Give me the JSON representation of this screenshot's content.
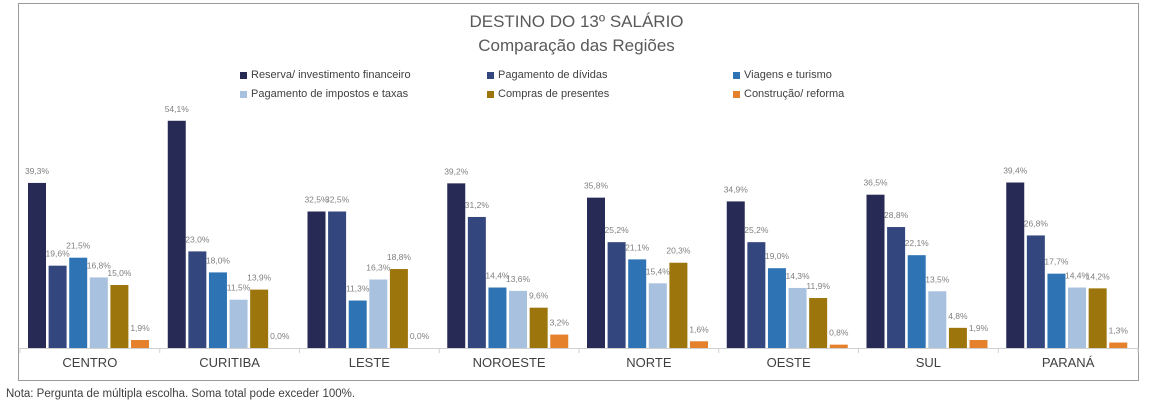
{
  "chart_data": {
    "type": "bar",
    "title": "DESTINO DO 13º SALÁRIO",
    "subtitle": "Comparação das Regiões",
    "categories": [
      "CENTRO",
      "CURITIBA",
      "LESTE",
      "NOROESTE",
      "NORTE",
      "OESTE",
      "SUL",
      "PARANÁ"
    ],
    "series": [
      {
        "name": "Reserva/ investimento financeiro",
        "color": "#262A55",
        "values": [
          39.3,
          54.1,
          32.5,
          39.2,
          35.8,
          34.9,
          36.5,
          39.4
        ]
      },
      {
        "name": "Pagamento de dívidas",
        "color": "#34467E",
        "values": [
          19.6,
          23.0,
          32.5,
          31.2,
          25.2,
          25.2,
          28.8,
          26.8
        ]
      },
      {
        "name": "Viagens e turismo",
        "color": "#2E74B5",
        "values": [
          21.5,
          18.0,
          11.3,
          14.4,
          21.1,
          19.0,
          22.1,
          17.7
        ]
      },
      {
        "name": "Pagamento de impostos e taxas",
        "color": "#A7C1DE",
        "values": [
          16.8,
          11.5,
          16.3,
          13.6,
          15.4,
          14.3,
          13.5,
          14.4
        ]
      },
      {
        "name": "Compras de presentes",
        "color": "#9C750C",
        "values": [
          15.0,
          13.9,
          18.8,
          9.6,
          20.3,
          11.9,
          4.8,
          14.2
        ]
      },
      {
        "name": "Construção/ reforma",
        "color": "#E5812C",
        "values": [
          1.9,
          0.0,
          0.0,
          3.2,
          1.6,
          0.8,
          1.9,
          1.3
        ]
      }
    ],
    "ylim": [
      0,
      60
    ],
    "grid": false,
    "legend": "top"
  },
  "footnote": "Nota: Pergunta de múltipla escolha. Soma total pode exceder 100%."
}
